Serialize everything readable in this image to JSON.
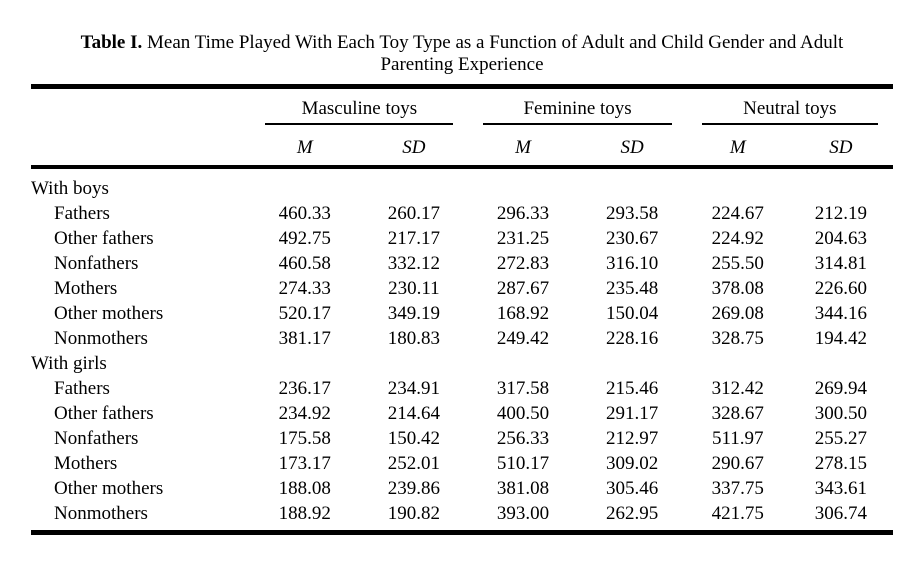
{
  "page": {
    "background_color": "#ffffff",
    "text_color": "#000000"
  },
  "table": {
    "title": {
      "label": "Table I.",
      "line1_rest": "Mean Time Played With Each Toy Type as a Function of Adult and Child Gender and Adult",
      "line2": "Parenting Experience"
    },
    "column_groups": [
      {
        "label": "Masculine toys"
      },
      {
        "label": "Feminine toys"
      },
      {
        "label": "Neutral toys"
      }
    ],
    "stat_headers": [
      "M",
      "SD",
      "M",
      "SD",
      "M",
      "SD"
    ],
    "sections": [
      {
        "header": "With boys",
        "rows": [
          {
            "label": "Fathers",
            "values": [
              "460.33",
              "260.17",
              "296.33",
              "293.58",
              "224.67",
              "212.19"
            ]
          },
          {
            "label": "Other fathers",
            "values": [
              "492.75",
              "217.17",
              "231.25",
              "230.67",
              "224.92",
              "204.63"
            ]
          },
          {
            "label": "Nonfathers",
            "values": [
              "460.58",
              "332.12",
              "272.83",
              "316.10",
              "255.50",
              "314.81"
            ]
          },
          {
            "label": "Mothers",
            "values": [
              "274.33",
              "230.11",
              "287.67",
              "235.48",
              "378.08",
              "226.60"
            ]
          },
          {
            "label": "Other mothers",
            "values": [
              "520.17",
              "349.19",
              "168.92",
              "150.04",
              "269.08",
              "344.16"
            ]
          },
          {
            "label": "Nonmothers",
            "values": [
              "381.17",
              "180.83",
              "249.42",
              "228.16",
              "328.75",
              "194.42"
            ]
          }
        ]
      },
      {
        "header": "With girls",
        "rows": [
          {
            "label": "Fathers",
            "values": [
              "236.17",
              "234.91",
              "317.58",
              "215.46",
              "312.42",
              "269.94"
            ]
          },
          {
            "label": "Other fathers",
            "values": [
              "234.92",
              "214.64",
              "400.50",
              "291.17",
              "328.67",
              "300.50"
            ]
          },
          {
            "label": "Nonfathers",
            "values": [
              "175.58",
              "150.42",
              "256.33",
              "212.97",
              "511.97",
              "255.27"
            ]
          },
          {
            "label": "Mothers",
            "values": [
              "173.17",
              "252.01",
              "510.17",
              "309.02",
              "290.67",
              "278.15"
            ]
          },
          {
            "label": "Other mothers",
            "values": [
              "188.08",
              "239.86",
              "381.08",
              "305.46",
              "337.75",
              "343.61"
            ]
          },
          {
            "label": "Nonmothers",
            "values": [
              "188.92",
              "190.82",
              "393.00",
              "262.95",
              "421.75",
              "306.74"
            ]
          }
        ]
      }
    ]
  },
  "chart_data": {
    "type": "table",
    "title": "Table I. Mean Time Played With Each Toy Type as a Function of Adult and Child Gender and Adult Parenting Experience",
    "column_groups": [
      "Masculine toys",
      "Feminine toys",
      "Neutral toys"
    ],
    "columns": [
      "Masculine M",
      "Masculine SD",
      "Feminine M",
      "Feminine SD",
      "Neutral M",
      "Neutral SD"
    ],
    "row_sections": [
      {
        "section": "With boys",
        "rows": {
          "Fathers": [
            460.33,
            260.17,
            296.33,
            293.58,
            224.67,
            212.19
          ],
          "Other fathers": [
            492.75,
            217.17,
            231.25,
            230.67,
            224.92,
            204.63
          ],
          "Nonfathers": [
            460.58,
            332.12,
            272.83,
            316.1,
            255.5,
            314.81
          ],
          "Mothers": [
            274.33,
            230.11,
            287.67,
            235.48,
            378.08,
            226.6
          ],
          "Other mothers": [
            520.17,
            349.19,
            168.92,
            150.04,
            269.08,
            344.16
          ],
          "Nonmothers": [
            381.17,
            180.83,
            249.42,
            228.16,
            328.75,
            194.42
          ]
        }
      },
      {
        "section": "With girls",
        "rows": {
          "Fathers": [
            236.17,
            234.91,
            317.58,
            215.46,
            312.42,
            269.94
          ],
          "Other fathers": [
            234.92,
            214.64,
            400.5,
            291.17,
            328.67,
            300.5
          ],
          "Nonfathers": [
            175.58,
            150.42,
            256.33,
            212.97,
            511.97,
            255.27
          ],
          "Mothers": [
            173.17,
            252.01,
            510.17,
            309.02,
            290.67,
            278.15
          ],
          "Other mothers": [
            188.08,
            239.86,
            381.08,
            305.46,
            337.75,
            343.61
          ],
          "Nonmothers": [
            188.92,
            190.82,
            393.0,
            262.95,
            421.75,
            306.74
          ]
        }
      }
    ]
  }
}
